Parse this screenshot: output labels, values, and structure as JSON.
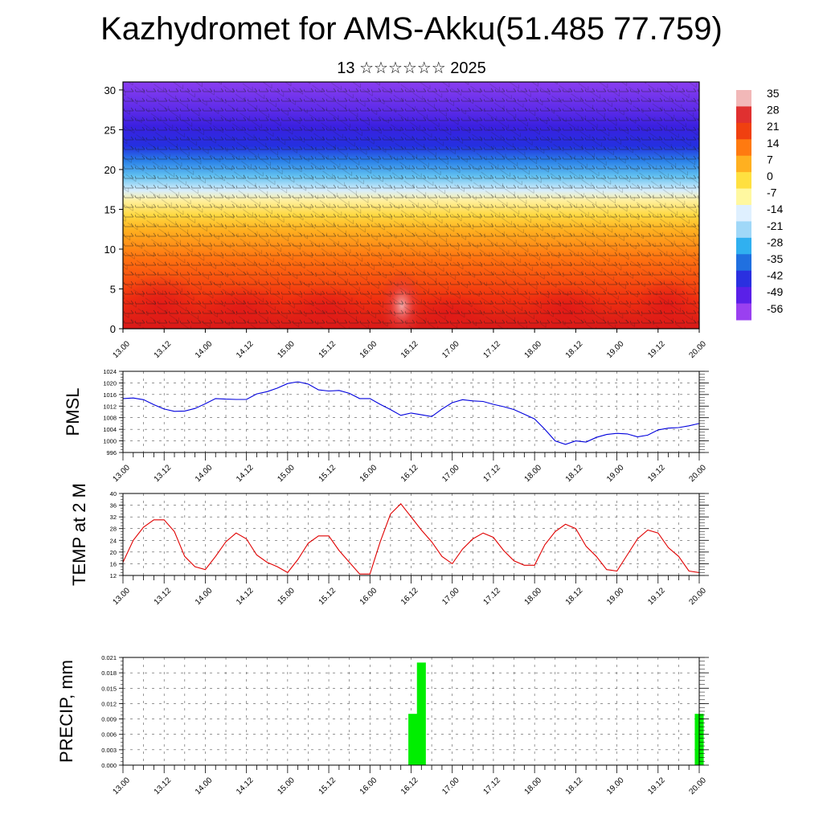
{
  "title": "Kazhydromet for AMS-Akku(51.485 77.759)",
  "subtitle": "13 ☆☆☆☆☆☆ 2025",
  "colors": {
    "pmsl_line": "#0000dd",
    "temp_line": "#e00000",
    "precip_bar": "#00ee00",
    "colorbar": [
      "#f2b8b8",
      "#e03030",
      "#f04010",
      "#ff7a10",
      "#ffb020",
      "#ffe040",
      "#fff8a0",
      "#dff0ff",
      "#a0d8f8",
      "#30b0f0",
      "#2070e0",
      "#2a30e0",
      "#5a20e8",
      "#9a40f0"
    ]
  },
  "chart_data": [
    {
      "type": "heatmap",
      "title": "",
      "xlabel": "",
      "ylabel": "",
      "x_ticks": [
        "13.00",
        "13.12",
        "14.00",
        "14.12",
        "15.00",
        "15.12",
        "16.00",
        "16.12",
        "17.00",
        "17.12",
        "18.00",
        "18.12",
        "19.00",
        "19.12",
        "20.00"
      ],
      "y_ticks": [
        "0",
        "5",
        "10",
        "15",
        "20",
        "25",
        "30"
      ],
      "ylim": [
        0,
        31
      ],
      "colorbar_labels": [
        "35",
        "28",
        "21",
        "14",
        "7",
        "0",
        "-7",
        "-14",
        "-21",
        "-28",
        "-35",
        "-42",
        "-49",
        "-56"
      ],
      "overlay": "wind barbs"
    },
    {
      "type": "line",
      "ylabel": "PMSL",
      "x_ticks": [
        "13.00",
        "13.12",
        "14.00",
        "14.12",
        "15.00",
        "15.12",
        "16.00",
        "16.12",
        "17.00",
        "17.12",
        "18.00",
        "18.12",
        "19.00",
        "19.12",
        "20.00"
      ],
      "y_ticks": [
        "1024",
        "1020",
        "1016",
        "1012",
        "1008",
        "1004",
        "1000",
        "996"
      ],
      "ylim": [
        996,
        1024
      ],
      "x": [
        0,
        3,
        6,
        9,
        12,
        15,
        18,
        21,
        24,
        27,
        30,
        33,
        36,
        39,
        42,
        45,
        48,
        51,
        54,
        57,
        60,
        63,
        66,
        69,
        72,
        75,
        78,
        81,
        84,
        87,
        90,
        93,
        96,
        99,
        102,
        105,
        108,
        111,
        114,
        117,
        120,
        123,
        126,
        129,
        132,
        135,
        138,
        141,
        144,
        147,
        150,
        153,
        156,
        159,
        162,
        165,
        168
      ],
      "series": [
        {
          "values": [
            1014.6,
            1014.8,
            1014.2,
            1012.5,
            1011.0,
            1010.2,
            1010.3,
            1011.2,
            1012.8,
            1014.6,
            1014.4,
            1014.3,
            1014.3,
            1016.2,
            1017.0,
            1018.2,
            1019.8,
            1020.4,
            1019.6,
            1017.6,
            1017.2,
            1017.4,
            1016.4,
            1014.6,
            1014.6,
            1012.6,
            1010.8,
            1008.8,
            1009.6,
            1009.0,
            1008.4,
            1011.0,
            1013.2,
            1014.2,
            1013.8,
            1013.6,
            1012.6,
            1011.8,
            1010.8,
            1009.2,
            1007.6,
            1004.0,
            1000.0,
            998.8,
            1000.0,
            999.6,
            1001.2,
            1002.2,
            1002.6,
            1002.4,
            1001.4,
            1002.0,
            1003.8,
            1004.4,
            1004.6,
            1005.2,
            1006.0
          ]
        }
      ]
    },
    {
      "type": "line",
      "ylabel": "TEMP at 2 M",
      "x_ticks": [
        "13.00",
        "13.12",
        "14.00",
        "14.12",
        "15.00",
        "15.12",
        "16.00",
        "16.12",
        "17.00",
        "17.12",
        "18.00",
        "18.12",
        "19.00",
        "19.12",
        "20.00"
      ],
      "y_ticks": [
        "40",
        "36",
        "32",
        "28",
        "24",
        "20",
        "16",
        "12"
      ],
      "ylim": [
        12,
        40
      ],
      "x": [
        0,
        3,
        6,
        9,
        12,
        15,
        18,
        21,
        24,
        27,
        30,
        33,
        36,
        39,
        42,
        45,
        48,
        51,
        54,
        57,
        60,
        63,
        66,
        69,
        72,
        75,
        78,
        81,
        84,
        87,
        90,
        93,
        96,
        99,
        102,
        105,
        108,
        111,
        114,
        117,
        120,
        123,
        126,
        129,
        132,
        135,
        138,
        141,
        144,
        147,
        150,
        153,
        156,
        159,
        162,
        165,
        168
      ],
      "series": [
        {
          "values": [
            16.5,
            24,
            28.5,
            31,
            31,
            27,
            18.5,
            15,
            14,
            18.5,
            23.5,
            26.5,
            24.5,
            19,
            16.5,
            15,
            13,
            17.5,
            23,
            25.5,
            25.5,
            20.5,
            16.5,
            12.5,
            12.5,
            23.5,
            33,
            36.5,
            32,
            27.5,
            23.5,
            18.5,
            16,
            21,
            24.5,
            26.5,
            25,
            20.5,
            17,
            15.5,
            15.5,
            22.5,
            27,
            29.5,
            28,
            22,
            18.5,
            14,
            13.5,
            19,
            24.5,
            27.5,
            26.5,
            21.5,
            18.5,
            13.5,
            13
          ]
        }
      ]
    },
    {
      "type": "bar",
      "ylabel": "PRECIP, mm",
      "x_ticks": [
        "13.00",
        "13.12",
        "14.00",
        "14.12",
        "15.00",
        "15.12",
        "16.00",
        "16.12",
        "17.00",
        "17.12",
        "18.00",
        "18.12",
        "19.00",
        "19.12",
        "20.00"
      ],
      "y_ticks": [
        "0.021",
        "0.018",
        "0.015",
        "0.012",
        "0.009",
        "0.006",
        "0.003",
        "0.000"
      ],
      "ylim": [
        0,
        0.021
      ],
      "x": [
        84.5,
        87,
        168
      ],
      "series": [
        {
          "values": [
            0.01,
            0.02,
            0.01
          ]
        }
      ]
    }
  ]
}
